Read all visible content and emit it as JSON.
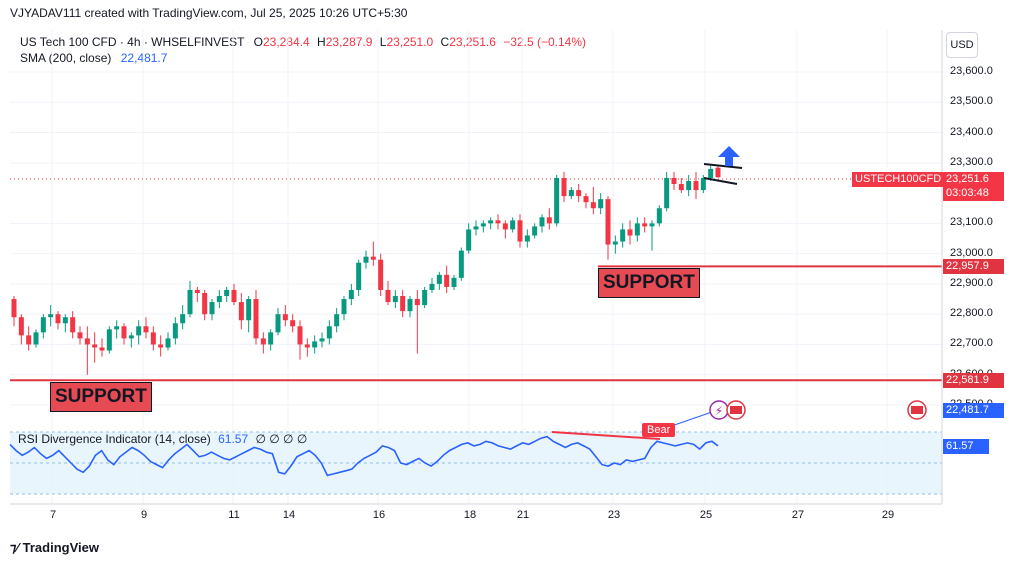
{
  "header": {
    "credit": "VJYADAV111 created with TradingView.com, Jul 25, 2025 10:26 UTC+5:30"
  },
  "legend": {
    "symbol": "US Tech 100 CFD · 4h · WHSELFINVEST",
    "o_label": "O",
    "o": "23,284.4",
    "h_label": "H",
    "h": "23,287.9",
    "l_label": "L",
    "l": "23,251.0",
    "c_label": "C",
    "c": "23,251.6",
    "change": "−32.5 (−0.14%)",
    "sma_name": "SMA (200, close)",
    "sma_value": "22,481.7"
  },
  "currency_button": "USD",
  "price_axis": {
    "ticks": [
      "23,600.0",
      "23,500.0",
      "23,400.0",
      "23,300.0",
      "23,100.0",
      "23,000.0",
      "22,900.0",
      "22,800.0",
      "22,700.0",
      "22,600.0",
      "22,500.0"
    ]
  },
  "tags": {
    "symbol_tag": "USTECH100CFD",
    "last_price": "23,251.6",
    "countdown": "03:03:48",
    "upper_support_price": "22,957.9",
    "lower_support_price": "22,581.9",
    "sma_price": "22,481.7",
    "rsi_value": "61.57"
  },
  "annotations": {
    "support_upper": "SUPPORT",
    "support_lower": "SUPPORT",
    "bear_label": "Bear"
  },
  "rsi": {
    "name": "RSI Divergence Indicator (14, close)",
    "value": "61.57",
    "extras": "∅ ∅ ∅ ∅"
  },
  "time_axis": {
    "labels": [
      "7",
      "9",
      "11",
      "14",
      "16",
      "18",
      "21",
      "23",
      "25",
      "27",
      "29"
    ]
  },
  "footer": {
    "brand": "TradingView"
  },
  "colors": {
    "up": "#089981",
    "down": "#f23645",
    "rsi_line": "#2962ff",
    "support_line": "#e03540",
    "rsi_band": "#e3f2fd"
  },
  "chart_data": {
    "type": "candlestick",
    "title": "US Tech 100 CFD · 4h · WHSELFINVEST",
    "ylim": [
      22450,
      23650
    ],
    "candles": [
      [
        22850,
        22860,
        22760,
        22790
      ],
      [
        22790,
        22800,
        22700,
        22730
      ],
      [
        22730,
        22760,
        22680,
        22700
      ],
      [
        22700,
        22750,
        22690,
        22740
      ],
      [
        22740,
        22800,
        22720,
        22790
      ],
      [
        22790,
        22830,
        22760,
        22800
      ],
      [
        22800,
        22810,
        22750,
        22770
      ],
      [
        22770,
        22800,
        22740,
        22790
      ],
      [
        22790,
        22810,
        22720,
        22740
      ],
      [
        22740,
        22760,
        22700,
        22720
      ],
      [
        22720,
        22760,
        22600,
        22700
      ],
      [
        22700,
        22740,
        22640,
        22690
      ],
      [
        22690,
        22720,
        22660,
        22680
      ],
      [
        22680,
        22760,
        22670,
        22750
      ],
      [
        22750,
        22780,
        22720,
        22760
      ],
      [
        22760,
        22770,
        22700,
        22720
      ],
      [
        22720,
        22740,
        22690,
        22730
      ],
      [
        22730,
        22780,
        22700,
        22760
      ],
      [
        22760,
        22790,
        22720,
        22740
      ],
      [
        22740,
        22760,
        22680,
        22700
      ],
      [
        22700,
        22730,
        22660,
        22690
      ],
      [
        22690,
        22740,
        22680,
        22720
      ],
      [
        22720,
        22790,
        22700,
        22770
      ],
      [
        22770,
        22830,
        22750,
        22800
      ],
      [
        22800,
        22910,
        22790,
        22880
      ],
      [
        22880,
        22890,
        22840,
        22870
      ],
      [
        22870,
        22880,
        22780,
        22800
      ],
      [
        22800,
        22850,
        22780,
        22840
      ],
      [
        22840,
        22880,
        22820,
        22860
      ],
      [
        22860,
        22890,
        22840,
        22880
      ],
      [
        22880,
        22900,
        22830,
        22840
      ],
      [
        22840,
        22870,
        22750,
        22780
      ],
      [
        22780,
        22860,
        22740,
        22850
      ],
      [
        22850,
        22880,
        22700,
        22720
      ],
      [
        22720,
        22740,
        22670,
        22700
      ],
      [
        22700,
        22750,
        22680,
        22740
      ],
      [
        22740,
        22820,
        22730,
        22800
      ],
      [
        22800,
        22830,
        22760,
        22780
      ],
      [
        22780,
        22800,
        22740,
        22760
      ],
      [
        22760,
        22780,
        22650,
        22700
      ],
      [
        22700,
        22720,
        22660,
        22690
      ],
      [
        22690,
        22730,
        22670,
        22710
      ],
      [
        22710,
        22740,
        22690,
        22720
      ],
      [
        22720,
        22780,
        22700,
        22760
      ],
      [
        22760,
        22820,
        22740,
        22800
      ],
      [
        22800,
        22860,
        22780,
        22850
      ],
      [
        22850,
        22900,
        22830,
        22880
      ],
      [
        22880,
        22980,
        22860,
        22970
      ],
      [
        22970,
        23010,
        22950,
        22990
      ],
      [
        22990,
        23040,
        22960,
        22980
      ],
      [
        22980,
        23000,
        22860,
        22880
      ],
      [
        22880,
        22910,
        22830,
        22840
      ],
      [
        22840,
        22880,
        22820,
        22860
      ],
      [
        22860,
        22880,
        22790,
        22810
      ],
      [
        22810,
        22860,
        22790,
        22850
      ],
      [
        22850,
        22880,
        22670,
        22830
      ],
      [
        22830,
        22890,
        22820,
        22880
      ],
      [
        22880,
        22920,
        22870,
        22900
      ],
      [
        22900,
        22940,
        22880,
        22930
      ],
      [
        22930,
        22960,
        22870,
        22890
      ],
      [
        22890,
        22930,
        22880,
        22920
      ],
      [
        22920,
        23020,
        22910,
        23010
      ],
      [
        23010,
        23100,
        23000,
        23080
      ],
      [
        23080,
        23110,
        23060,
        23090
      ],
      [
        23090,
        23110,
        23070,
        23100
      ],
      [
        23100,
        23120,
        23080,
        23110
      ],
      [
        23110,
        23130,
        23080,
        23100
      ],
      [
        23100,
        23110,
        23050,
        23080
      ],
      [
        23080,
        23120,
        23070,
        23110
      ],
      [
        23110,
        23130,
        23020,
        23040
      ],
      [
        23040,
        23080,
        23020,
        23060
      ],
      [
        23060,
        23100,
        23050,
        23090
      ],
      [
        23090,
        23130,
        23070,
        23120
      ],
      [
        23120,
        23150,
        23080,
        23100
      ],
      [
        23100,
        23260,
        23090,
        23250
      ],
      [
        23250,
        23270,
        23170,
        23190
      ],
      [
        23190,
        23220,
        23180,
        23210
      ],
      [
        23210,
        23230,
        23170,
        23190
      ],
      [
        23190,
        23200,
        23150,
        23170
      ],
      [
        23170,
        23220,
        23130,
        23150
      ],
      [
        23150,
        23200,
        23130,
        23180
      ],
      [
        23180,
        23190,
        22980,
        23030
      ],
      [
        23030,
        23060,
        23000,
        23040
      ],
      [
        23040,
        23100,
        23020,
        23080
      ],
      [
        23080,
        23110,
        23030,
        23060
      ],
      [
        23060,
        23120,
        23040,
        23100
      ],
      [
        23100,
        23120,
        23070,
        23090
      ],
      [
        23090,
        23110,
        23010,
        23100
      ],
      [
        23100,
        23160,
        23090,
        23150
      ],
      [
        23150,
        23270,
        23140,
        23250
      ],
      [
        23250,
        23270,
        23210,
        23230
      ],
      [
        23230,
        23250,
        23200,
        23210
      ],
      [
        23210,
        23260,
        23190,
        23240
      ],
      [
        23240,
        23270,
        23180,
        23210
      ],
      [
        23210,
        23260,
        23200,
        23250
      ],
      [
        23250,
        23290,
        23240,
        23280
      ],
      [
        23284,
        23288,
        23251,
        23252
      ]
    ],
    "horizontal_lines": [
      {
        "label": "SUPPORT",
        "price": 22957.9
      },
      {
        "label": "SUPPORT",
        "price": 22581.9
      }
    ],
    "sma": {
      "name": "SMA (200, close)",
      "value": 22481.7
    },
    "rsi": {
      "name": "RSI Divergence Indicator (14, close)",
      "values": [
        62,
        58,
        55,
        57,
        60,
        56,
        53,
        55,
        58,
        54,
        50,
        46,
        44,
        48,
        55,
        58,
        52,
        49,
        54,
        57,
        60,
        58,
        55,
        51,
        49,
        47,
        52,
        56,
        59,
        62,
        58,
        54,
        55,
        57,
        55,
        53,
        52,
        54,
        56,
        58,
        60,
        59,
        57,
        56,
        44,
        43,
        48,
        54,
        56,
        58,
        55,
        50,
        42,
        43,
        44,
        45,
        46,
        50,
        53,
        55,
        57,
        61,
        60,
        58,
        50,
        49,
        51,
        53,
        50,
        48,
        51,
        55,
        58,
        60,
        62,
        63,
        61,
        62,
        64,
        63,
        61,
        60,
        59,
        61,
        63,
        62,
        64,
        66,
        67,
        64,
        62,
        60,
        62,
        63,
        61,
        59,
        54,
        49,
        48,
        50,
        49,
        52,
        51,
        52,
        53,
        60,
        64,
        63,
        62,
        61,
        62,
        63,
        62,
        59,
        63,
        64,
        61
      ]
    }
  }
}
